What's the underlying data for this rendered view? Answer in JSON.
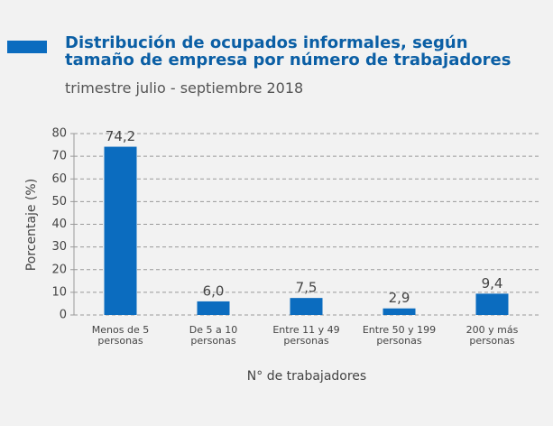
{
  "chart_data": {
    "type": "bar",
    "title": "Distribución de ocupados informales, según tamaño de empresa por número de trabajadores",
    "subtitle": "trimestre julio - septiembre 2018",
    "y_label": "Porcentaje (%)",
    "x_label": "N° de trabajadores",
    "categories": [
      "Menos de 5 personas",
      "De 5 a 10 personas",
      "Entre 11 y 49 personas",
      "Entre 50 y 199 personas",
      "200 y más personas"
    ],
    "values": [
      74.2,
      6.0,
      7.5,
      2.9,
      9.4
    ],
    "value_labels": [
      "74,2",
      "6,0",
      "7,5",
      "2,9",
      "9,4"
    ],
    "color": "#0b6cbf",
    "ylim": [
      0,
      80
    ],
    "yticks": [
      0,
      10,
      20,
      30,
      40,
      50,
      60,
      70,
      80
    ],
    "grid": true
  }
}
